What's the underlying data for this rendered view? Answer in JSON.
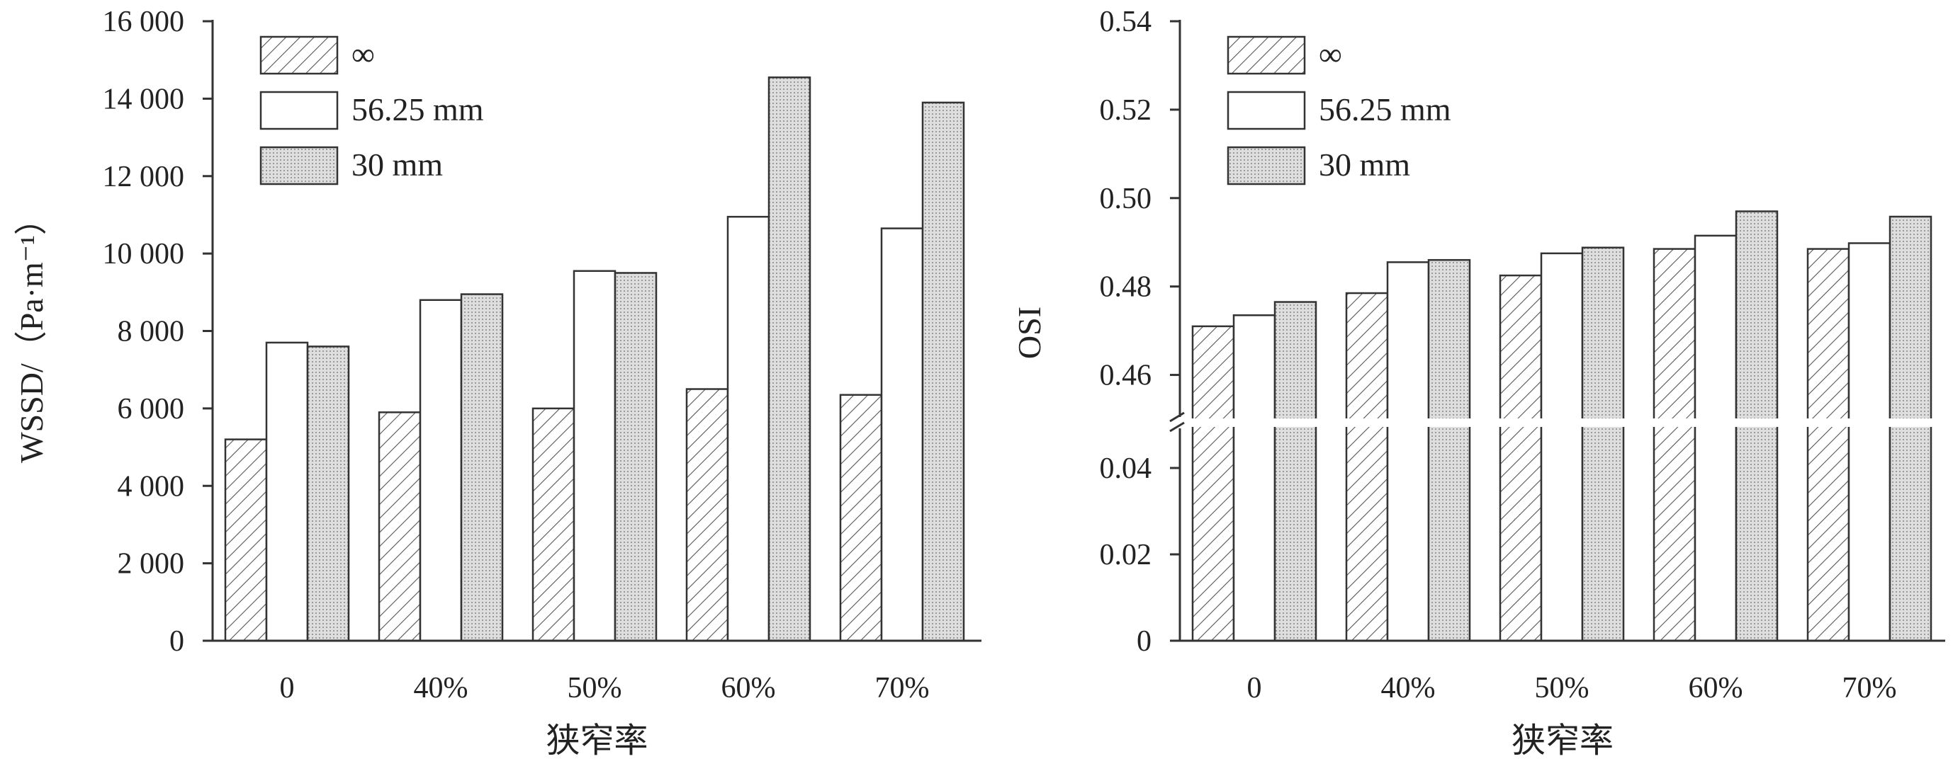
{
  "legend_entries": [
    "∞",
    "56.25 mm",
    "30 mm"
  ],
  "chart_data": [
    {
      "type": "bar",
      "ylabel": "WSSD/（Pa·m⁻¹）",
      "xlabel": "狭窄率",
      "categories": [
        "0",
        "40%",
        "50%",
        "60%",
        "70%"
      ],
      "ylim": [
        0,
        16000
      ],
      "yticks": [
        0,
        2000,
        4000,
        6000,
        8000,
        10000,
        12000,
        14000,
        16000
      ],
      "ytick_labels": [
        "0",
        "2 000",
        "4 000",
        "6 000",
        "8 000",
        "10 000",
        "12 000",
        "14 000",
        "16 000"
      ],
      "legend_position": "top-left",
      "series": [
        {
          "name": "∞",
          "values": [
            5200,
            5900,
            6000,
            6500,
            6350
          ]
        },
        {
          "name": "56.25 mm",
          "values": [
            7700,
            8800,
            9550,
            10950,
            10650
          ]
        },
        {
          "name": "30 mm",
          "values": [
            7600,
            8950,
            9500,
            14550,
            13900
          ]
        }
      ]
    },
    {
      "type": "bar",
      "ylabel": "OSI",
      "xlabel": "狭窄率",
      "categories": [
        "0",
        "40%",
        "50%",
        "60%",
        "70%"
      ],
      "axis_break": true,
      "lower_ylim": [
        0,
        0.05
      ],
      "lower_yticks": [
        0,
        0.02,
        0.04
      ],
      "lower_ytick_labels": [
        "0",
        "0.02",
        "0.04"
      ],
      "upper_ylim": [
        0.45,
        0.54
      ],
      "upper_yticks": [
        0.46,
        0.48,
        0.5,
        0.52,
        0.54
      ],
      "upper_ytick_labels": [
        "0.46",
        "0.48",
        "0.50",
        "0.52",
        "0.54"
      ],
      "legend_position": "top-left",
      "series": [
        {
          "name": "∞",
          "values": [
            0.471,
            0.4785,
            0.4825,
            0.4885,
            0.4885
          ]
        },
        {
          "name": "56.25 mm",
          "values": [
            0.4735,
            0.4855,
            0.4875,
            0.4915,
            0.4898
          ]
        },
        {
          "name": "30 mm",
          "values": [
            0.4765,
            0.486,
            0.4888,
            0.497,
            0.4958
          ]
        }
      ]
    }
  ],
  "colors": {
    "bar_outline": "#333333",
    "hatch_line": "#555555",
    "dotted_fill": "#d4d4d4",
    "axis": "#333333"
  }
}
